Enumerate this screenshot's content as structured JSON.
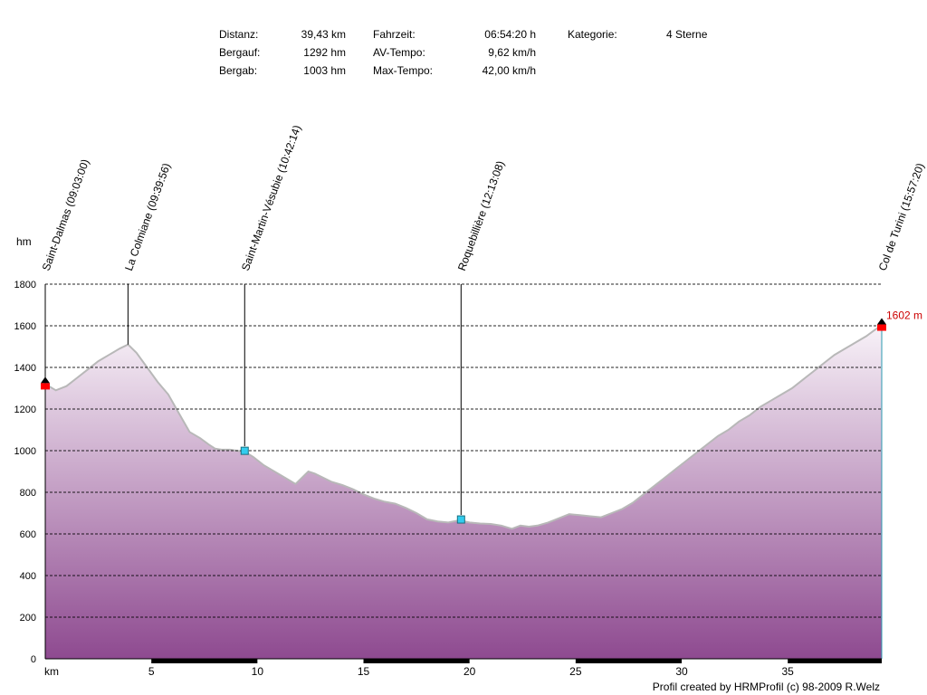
{
  "stats": {
    "col1": [
      {
        "label": "Distanz:",
        "value": "39,43 km"
      },
      {
        "label": "Bergauf:",
        "value": "1292 hm"
      },
      {
        "label": "Bergab:",
        "value": "1003 hm"
      }
    ],
    "col2": [
      {
        "label": "Fahrzeit:",
        "value": "06:54:20 h"
      },
      {
        "label": "AV-Tempo:",
        "value": "9,62 km/h"
      },
      {
        "label": "Max-Tempo:",
        "value": "42,00 km/h"
      }
    ],
    "col3": [
      {
        "label": "Kategorie:",
        "value": "4 Sterne"
      }
    ]
  },
  "credit": "Profil created by HRMProfil (c) 98-2009 R.Welz",
  "chart_data": {
    "type": "area",
    "title": "",
    "xlabel": "km",
    "ylabel": "hm",
    "xlim": [
      0,
      39.43
    ],
    "ylim": [
      0,
      1800
    ],
    "xticks": [
      5,
      10,
      15,
      20,
      25,
      30,
      35
    ],
    "yticks": [
      0,
      200,
      400,
      600,
      800,
      1000,
      1200,
      1400,
      1600,
      1800
    ],
    "grid": "horizontal dashed",
    "colors": {
      "fill_top": "#f8f2f8",
      "fill_bottom": "#8e4a90",
      "line": "#b8b8b8",
      "end_marker": "#ff0000",
      "waypoint": "#33ccee",
      "end_label": "#cc0000"
    },
    "end_label": "1602 m",
    "x": [
      0,
      0.5,
      1,
      1.5,
      2,
      2.5,
      3,
      3.5,
      3.9,
      4.3,
      4.8,
      5.3,
      5.8,
      6.3,
      6.8,
      7.3,
      7.7,
      8.0,
      8.3,
      8.7,
      9.0,
      9.4,
      9.8,
      10.3,
      10.8,
      11.3,
      11.8,
      12.2,
      12.4,
      12.7,
      13.1,
      13.5,
      14.0,
      14.5,
      15.0,
      15.5,
      16.0,
      16.5,
      17.0,
      17.5,
      18.0,
      18.5,
      19.0,
      19.5,
      20.0,
      20.5,
      21.0,
      21.5,
      22.0,
      22.4,
      22.8,
      23.2,
      23.7,
      24.2,
      24.7,
      25.2,
      25.7,
      26.2,
      26.7,
      27.2,
      27.7,
      28.2,
      28.7,
      29.2,
      29.7,
      30.2,
      30.7,
      31.2,
      31.7,
      32.2,
      32.7,
      33.2,
      33.7,
      34.2,
      34.7,
      35.2,
      35.7,
      36.2,
      36.7,
      37.2,
      37.7,
      38.2,
      38.7,
      39.1,
      39.43
    ],
    "y": [
      1320,
      1290,
      1310,
      1350,
      1390,
      1430,
      1460,
      1490,
      1510,
      1470,
      1400,
      1330,
      1270,
      1180,
      1090,
      1060,
      1030,
      1010,
      1005,
      1005,
      1000,
      995,
      970,
      930,
      900,
      870,
      840,
      880,
      900,
      890,
      870,
      850,
      835,
      815,
      790,
      770,
      755,
      745,
      725,
      700,
      670,
      660,
      655,
      665,
      655,
      650,
      648,
      640,
      625,
      640,
      635,
      640,
      655,
      675,
      695,
      690,
      685,
      680,
      700,
      720,
      750,
      790,
      830,
      870,
      910,
      950,
      990,
      1030,
      1070,
      1100,
      1140,
      1170,
      1210,
      1240,
      1270,
      1300,
      1340,
      1380,
      1420,
      1460,
      1490,
      1520,
      1550,
      1580,
      1602
    ],
    "waypoints": [
      {
        "label": "Saint-Dalmas (09:03:00)",
        "x": 0,
        "alt": 1320,
        "marker": "start"
      },
      {
        "label": "La Colmiane (09:39:56)",
        "x": 3.9,
        "alt": 1510,
        "marker": "none"
      },
      {
        "label": "Saint-Martin-Vésubie (10:42:14)",
        "x": 9.4,
        "alt": 995,
        "marker": "waypoint"
      },
      {
        "label": "Roquebillière (12:13:08)",
        "x": 19.6,
        "alt": 665,
        "marker": "waypoint"
      },
      {
        "label": "Col de Turini (15:57:20)",
        "x": 39.43,
        "alt": 1602,
        "marker": "end"
      }
    ]
  }
}
